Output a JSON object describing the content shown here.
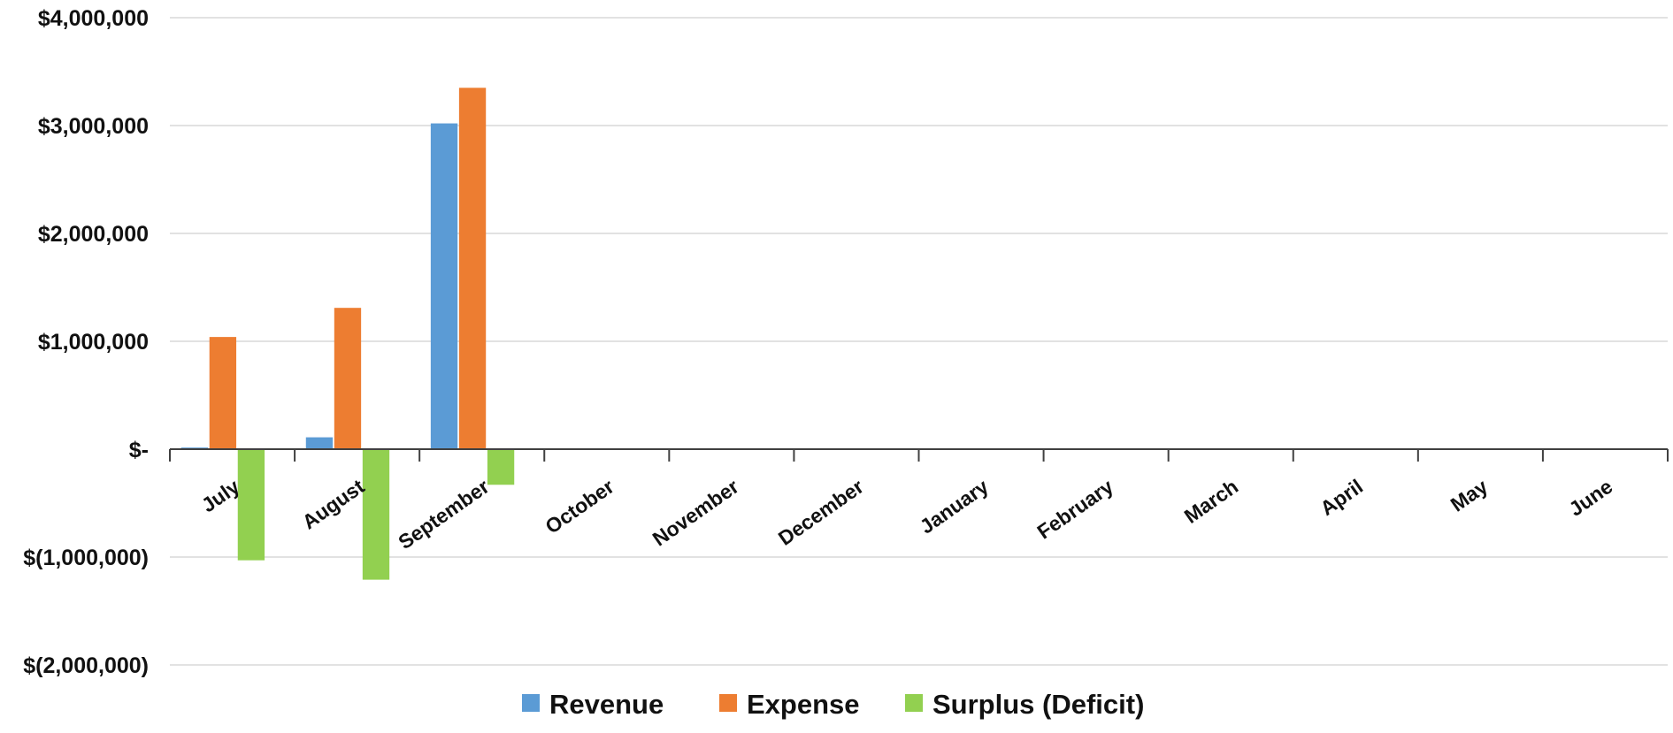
{
  "chart_data": {
    "type": "bar",
    "categories": [
      "July",
      "August",
      "September",
      "October",
      "November",
      "December",
      "January",
      "February",
      "March",
      "April",
      "May",
      "June"
    ],
    "series": [
      {
        "name": "Revenue",
        "color": "#5B9BD5",
        "values": [
          15000,
          110000,
          3020000,
          null,
          null,
          null,
          null,
          null,
          null,
          null,
          null,
          null
        ]
      },
      {
        "name": "Expense",
        "color": "#ED7D31",
        "values": [
          1040000,
          1310000,
          3350000,
          null,
          null,
          null,
          null,
          null,
          null,
          null,
          null,
          null
        ]
      },
      {
        "name": "Surplus (Deficit)",
        "color": "#92D050",
        "values": [
          -1030000,
          -1210000,
          -330000,
          null,
          null,
          null,
          null,
          null,
          null,
          null,
          null,
          null
        ]
      }
    ],
    "ylim": [
      -2000000,
      4000000
    ],
    "yticks": [
      {
        "value": 4000000,
        "label": "$4,000,000"
      },
      {
        "value": 3000000,
        "label": "$3,000,000"
      },
      {
        "value": 2000000,
        "label": "$2,000,000"
      },
      {
        "value": 1000000,
        "label": "$1,000,000"
      },
      {
        "value": 0,
        "label": "$-"
      },
      {
        "value": -1000000,
        "label": "$(1,000,000)"
      },
      {
        "value": -2000000,
        "label": "$(2,000,000)"
      }
    ],
    "title": "",
    "xlabel": "",
    "ylabel": "",
    "grid": true,
    "legend_position": "bottom",
    "gridline_color": "#D9D9D9",
    "axis_color": "#404040"
  }
}
